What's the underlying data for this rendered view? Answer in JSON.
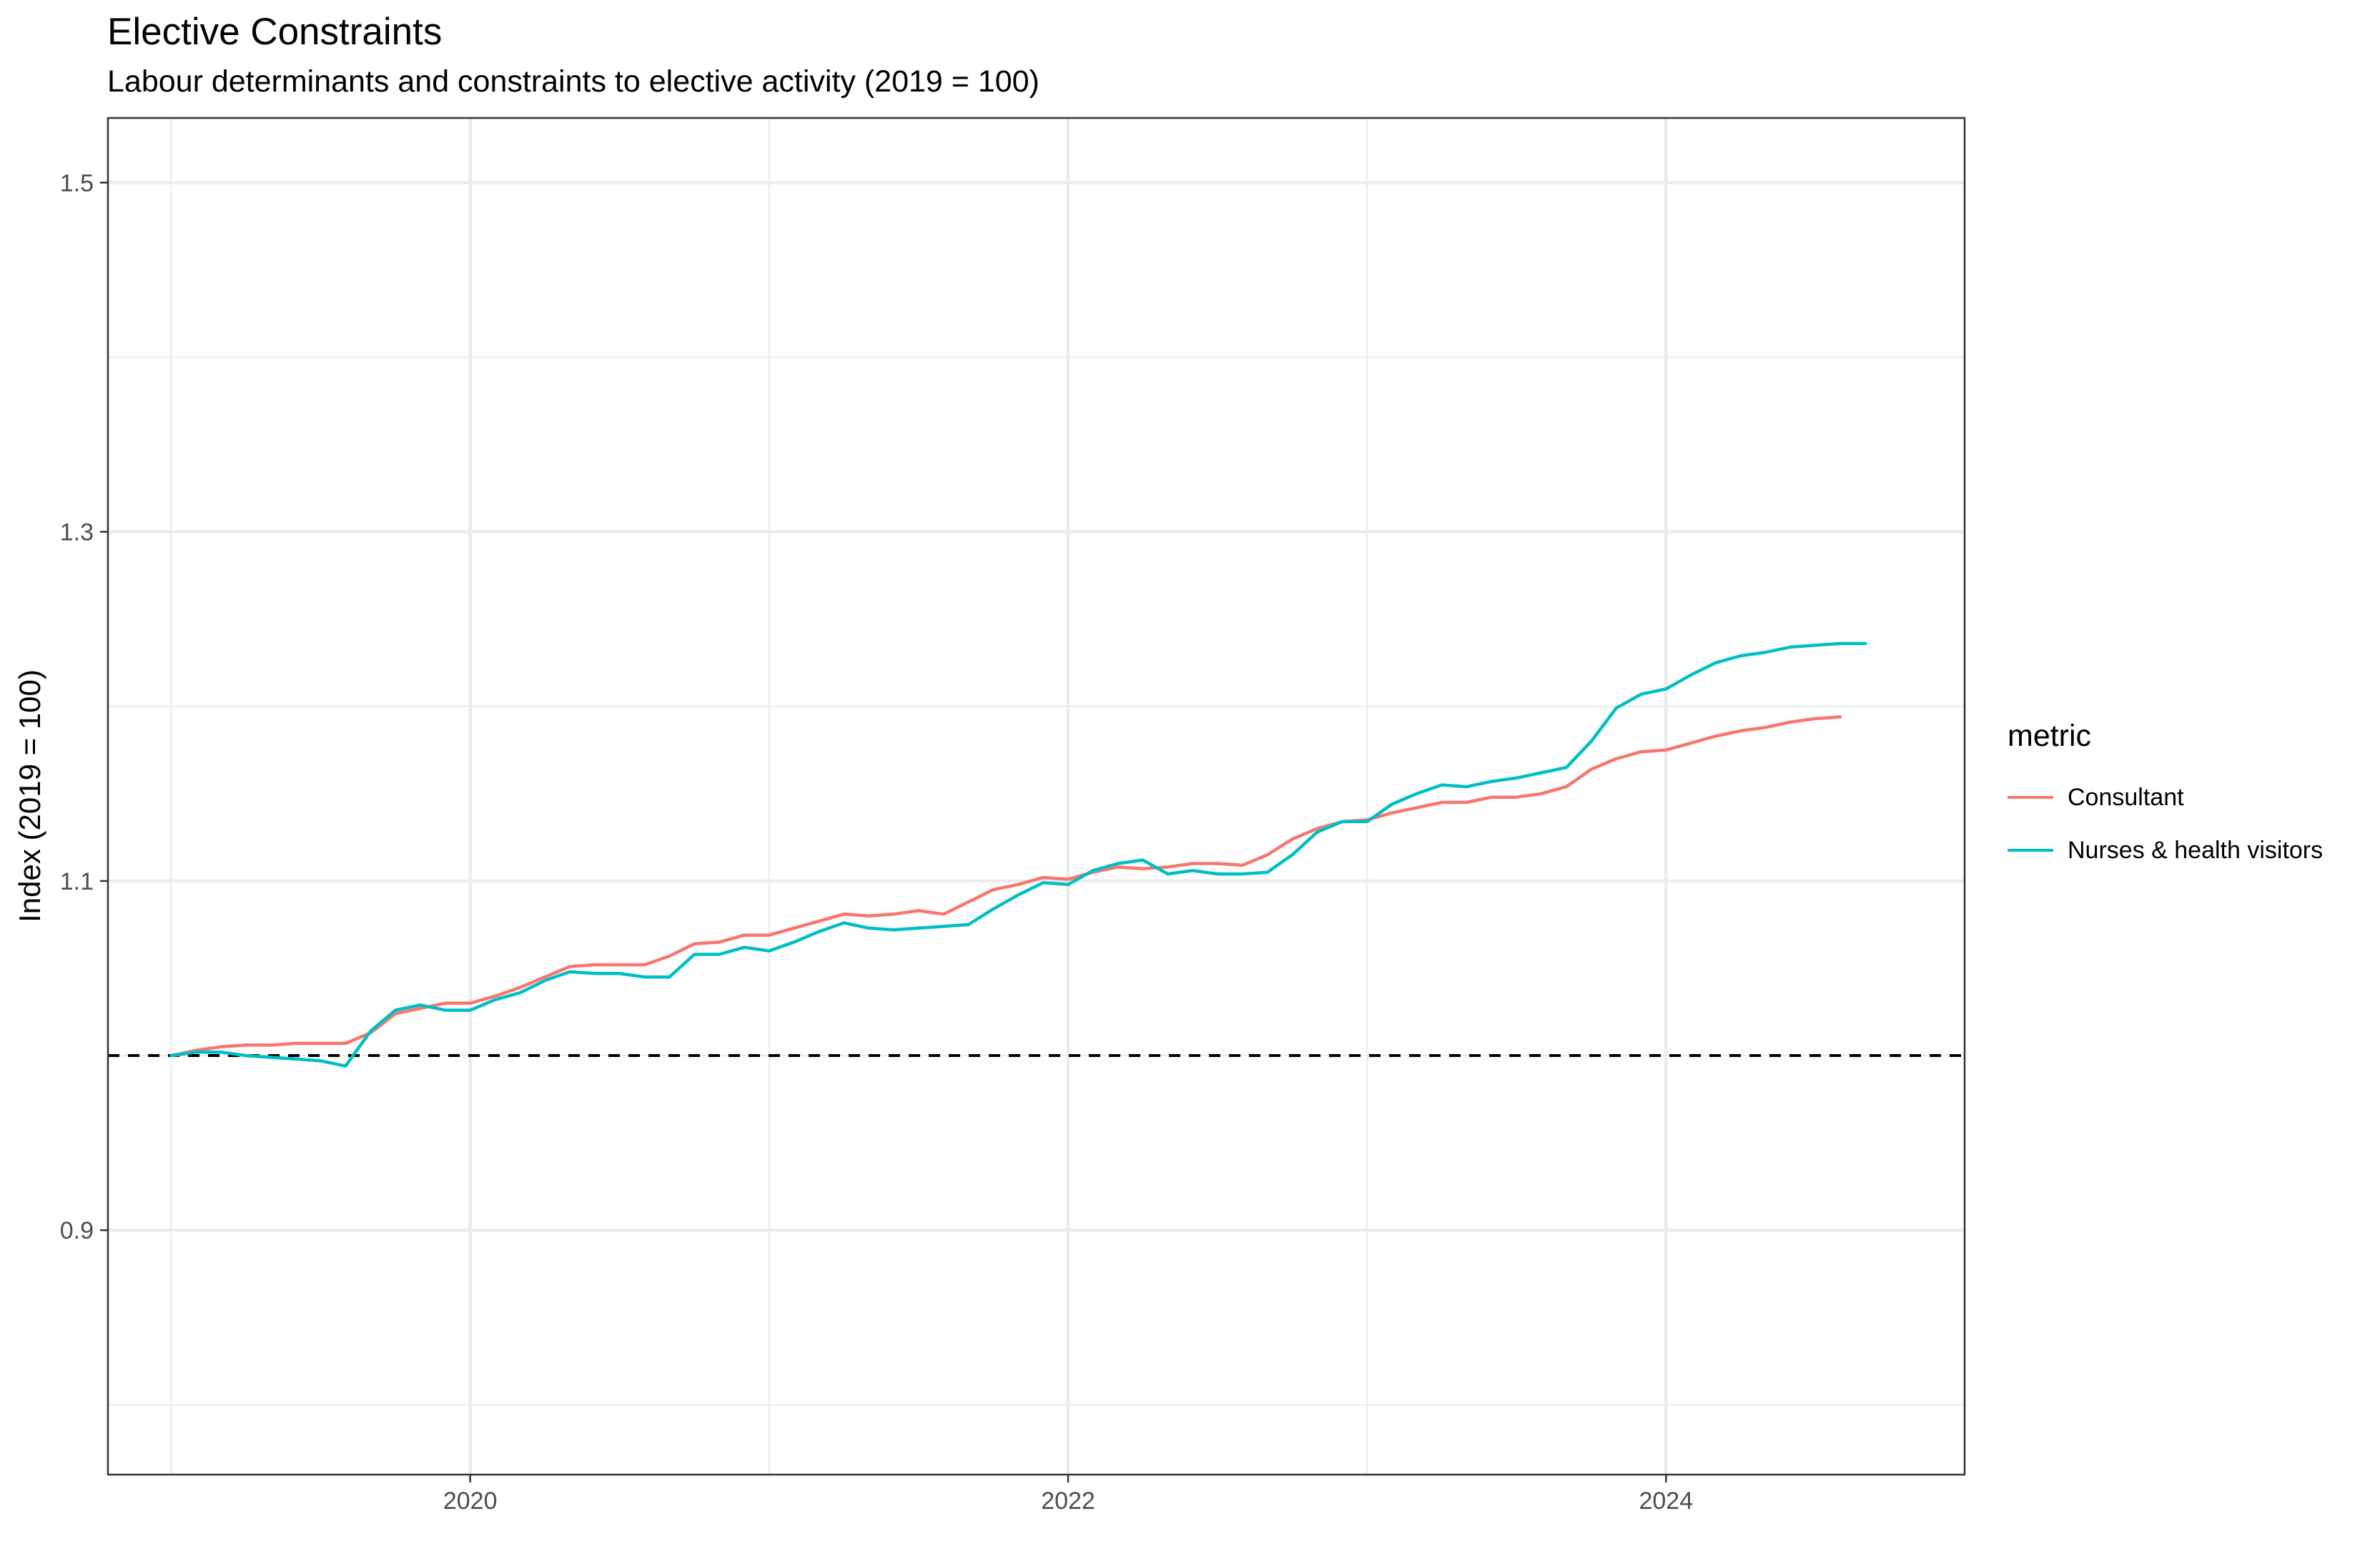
{
  "title": "Elective Constraints",
  "subtitle": "Labour determinants and constraints to elective activity (2019 = 100)",
  "legend": {
    "title": "metric",
    "items": [
      {
        "label": "Consultant",
        "color": "#F8766D"
      },
      {
        "label": "Nurses & health visitors",
        "color": "#00BFC4"
      }
    ]
  },
  "chart_data": {
    "type": "line",
    "title": "Elective Constraints",
    "subtitle": "Labour determinants and constraints to elective activity (2019 = 100)",
    "xlabel": "",
    "ylabel": "Index (2019 = 100)",
    "x_ticks": [
      "2020",
      "2022",
      "2024"
    ],
    "y_ticks": [
      "0.9",
      "1.1",
      "1.3",
      "1.5"
    ],
    "xlim": [
      "2018-10-15",
      "2024-12-31"
    ],
    "ylim": [
      0.76,
      1.537
    ],
    "reference_line": {
      "y": 1.0,
      "style": "dashed",
      "color": "#000000"
    },
    "grid": true,
    "legend_position": "right",
    "series": [
      {
        "name": "Consultant",
        "color": "#F8766D",
        "points": [
          [
            "2019-01",
            1.0
          ],
          [
            "2019-02",
            1.003
          ],
          [
            "2019-03",
            1.005
          ],
          [
            "2019-04",
            1.006
          ],
          [
            "2019-05",
            1.006
          ],
          [
            "2019-06",
            1.007
          ],
          [
            "2019-07",
            1.007
          ],
          [
            "2019-08",
            1.007
          ],
          [
            "2019-09",
            1.013
          ],
          [
            "2019-10",
            1.024
          ],
          [
            "2019-11",
            1.027
          ],
          [
            "2019-12",
            1.03
          ],
          [
            "2020-01",
            1.03
          ],
          [
            "2020-02",
            1.034
          ],
          [
            "2020-03",
            1.039
          ],
          [
            "2020-04",
            1.045
          ],
          [
            "2020-05",
            1.051
          ],
          [
            "2020-06",
            1.052
          ],
          [
            "2020-07",
            1.052
          ],
          [
            "2020-08",
            1.052
          ],
          [
            "2020-09",
            1.057
          ],
          [
            "2020-10",
            1.064
          ],
          [
            "2020-11",
            1.065
          ],
          [
            "2020-12",
            1.069
          ],
          [
            "2021-01",
            1.069
          ],
          [
            "2021-02",
            1.073
          ],
          [
            "2021-03",
            1.077
          ],
          [
            "2021-04",
            1.081
          ],
          [
            "2021-05",
            1.08
          ],
          [
            "2021-06",
            1.081
          ],
          [
            "2021-07",
            1.083
          ],
          [
            "2021-08",
            1.081
          ],
          [
            "2021-09",
            1.088
          ],
          [
            "2021-10",
            1.095
          ],
          [
            "2021-11",
            1.098
          ],
          [
            "2021-12",
            1.102
          ],
          [
            "2022-01",
            1.101
          ],
          [
            "2022-02",
            1.105
          ],
          [
            "2022-03",
            1.108
          ],
          [
            "2022-04",
            1.107
          ],
          [
            "2022-05",
            1.108
          ],
          [
            "2022-06",
            1.11
          ],
          [
            "2022-07",
            1.11
          ],
          [
            "2022-08",
            1.109
          ],
          [
            "2022-09",
            1.115
          ],
          [
            "2022-10",
            1.124
          ],
          [
            "2022-11",
            1.13
          ],
          [
            "2022-12",
            1.134
          ],
          [
            "2023-01",
            1.135
          ],
          [
            "2023-02",
            1.139
          ],
          [
            "2023-03",
            1.142
          ],
          [
            "2023-04",
            1.145
          ],
          [
            "2023-05",
            1.145
          ],
          [
            "2023-06",
            1.148
          ],
          [
            "2023-07",
            1.148
          ],
          [
            "2023-08",
            1.15
          ],
          [
            "2023-09",
            1.154
          ],
          [
            "2023-10",
            1.164
          ],
          [
            "2023-11",
            1.17
          ],
          [
            "2023-12",
            1.174
          ],
          [
            "2024-01",
            1.175
          ],
          [
            "2024-02",
            1.179
          ],
          [
            "2024-03",
            1.183
          ],
          [
            "2024-04",
            1.186
          ],
          [
            "2024-05",
            1.188
          ],
          [
            "2024-06",
            1.191
          ],
          [
            "2024-07",
            1.193
          ],
          [
            "2024-08",
            1.194
          ]
        ]
      },
      {
        "name": "Nurses & health visitors",
        "color": "#00BFC4",
        "points": [
          [
            "2019-01",
            1.0
          ],
          [
            "2019-02",
            1.002
          ],
          [
            "2019-03",
            1.002
          ],
          [
            "2019-04",
            1.0
          ],
          [
            "2019-05",
            0.999
          ],
          [
            "2019-06",
            0.998
          ],
          [
            "2019-07",
            0.997
          ],
          [
            "2019-08",
            0.994
          ],
          [
            "2019-09",
            1.014
          ],
          [
            "2019-10",
            1.026
          ],
          [
            "2019-11",
            1.029
          ],
          [
            "2019-12",
            1.026
          ],
          [
            "2020-01",
            1.026
          ],
          [
            "2020-02",
            1.032
          ],
          [
            "2020-03",
            1.036
          ],
          [
            "2020-04",
            1.043
          ],
          [
            "2020-05",
            1.048
          ],
          [
            "2020-06",
            1.047
          ],
          [
            "2020-07",
            1.047
          ],
          [
            "2020-08",
            1.045
          ],
          [
            "2020-09",
            1.045
          ],
          [
            "2020-10",
            1.058
          ],
          [
            "2020-11",
            1.058
          ],
          [
            "2020-12",
            1.062
          ],
          [
            "2021-01",
            1.06
          ],
          [
            "2021-02",
            1.065
          ],
          [
            "2021-03",
            1.071
          ],
          [
            "2021-04",
            1.076
          ],
          [
            "2021-05",
            1.073
          ],
          [
            "2021-06",
            1.072
          ],
          [
            "2021-07",
            1.073
          ],
          [
            "2021-08",
            1.074
          ],
          [
            "2021-09",
            1.075
          ],
          [
            "2021-10",
            1.084
          ],
          [
            "2021-11",
            1.092
          ],
          [
            "2021-12",
            1.099
          ],
          [
            "2022-01",
            1.098
          ],
          [
            "2022-02",
            1.106
          ],
          [
            "2022-03",
            1.11
          ],
          [
            "2022-04",
            1.112
          ],
          [
            "2022-05",
            1.104
          ],
          [
            "2022-06",
            1.106
          ],
          [
            "2022-07",
            1.104
          ],
          [
            "2022-08",
            1.104
          ],
          [
            "2022-09",
            1.105
          ],
          [
            "2022-10",
            1.115
          ],
          [
            "2022-11",
            1.128
          ],
          [
            "2022-12",
            1.134
          ],
          [
            "2023-01",
            1.134
          ],
          [
            "2023-02",
            1.144
          ],
          [
            "2023-03",
            1.15
          ],
          [
            "2023-04",
            1.155
          ],
          [
            "2023-05",
            1.154
          ],
          [
            "2023-06",
            1.157
          ],
          [
            "2023-07",
            1.159
          ],
          [
            "2023-08",
            1.162
          ],
          [
            "2023-09",
            1.165
          ],
          [
            "2023-10",
            1.18
          ],
          [
            "2023-11",
            1.199
          ],
          [
            "2023-12",
            1.207
          ],
          [
            "2024-01",
            1.21
          ],
          [
            "2024-02",
            1.218
          ],
          [
            "2024-03",
            1.225
          ],
          [
            "2024-04",
            1.229
          ],
          [
            "2024-05",
            1.231
          ],
          [
            "2024-06",
            1.234
          ],
          [
            "2024-07",
            1.235
          ],
          [
            "2024-08",
            1.236
          ],
          [
            "2024-09",
            1.236
          ]
        ]
      }
    ]
  }
}
